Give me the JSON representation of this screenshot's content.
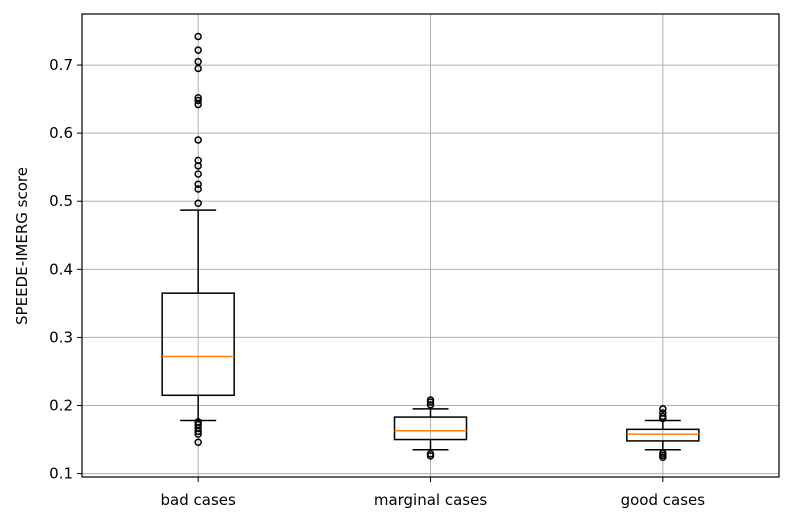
{
  "chart_data": {
    "type": "box",
    "title": "",
    "xlabel": "",
    "ylabel": "SPEEDE-IMERG score",
    "ylim": [
      0.095,
      0.775
    ],
    "yticks": [
      "0.1",
      "0.2",
      "0.3",
      "0.4",
      "0.5",
      "0.6",
      "0.7"
    ],
    "grid": true,
    "colors": {
      "box": "#000000",
      "median": "#ff7f0e",
      "grid": "#b0b0b0"
    },
    "categories": [
      "bad cases",
      "marginal cases",
      "good cases"
    ],
    "boxes": [
      {
        "category": "bad cases",
        "whisker_low": 0.178,
        "q1": 0.215,
        "median": 0.272,
        "q3": 0.365,
        "whisker_high": 0.487,
        "outliers": [
          0.742,
          0.722,
          0.705,
          0.695,
          0.652,
          0.648,
          0.642,
          0.59,
          0.56,
          0.552,
          0.54,
          0.525,
          0.518,
          0.497,
          0.176,
          0.172,
          0.167,
          0.162,
          0.158,
          0.146
        ]
      },
      {
        "category": "marginal cases",
        "whisker_low": 0.135,
        "q1": 0.15,
        "median": 0.163,
        "q3": 0.183,
        "whisker_high": 0.195,
        "outliers": [
          0.208,
          0.205,
          0.201,
          0.129,
          0.126
        ]
      },
      {
        "category": "good cases",
        "whisker_low": 0.135,
        "q1": 0.148,
        "median": 0.158,
        "q3": 0.165,
        "whisker_high": 0.178,
        "outliers": [
          0.195,
          0.189,
          0.184,
          0.181,
          0.13,
          0.127,
          0.124
        ]
      }
    ]
  }
}
